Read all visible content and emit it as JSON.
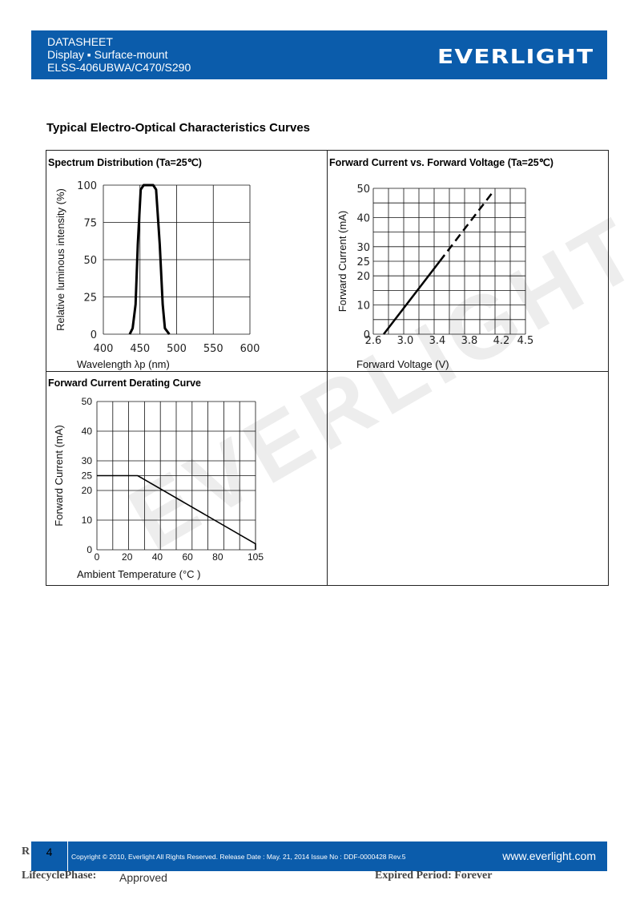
{
  "header": {
    "line1": "DATASHEET",
    "line2": "Display ▪ Surface-mount",
    "line3": "ELSS-406UBWA/C470/S290",
    "logo": "EVERLIGHT"
  },
  "section_title": "Typical Electro-Optical Characteristics Curves",
  "watermark": "EVERLIGHT",
  "chart_data": [
    {
      "type": "line",
      "title": "Spectrum Distribution (Ta=25℃)",
      "xlabel": "Wavelength λp (nm)",
      "ylabel": "Relative luminous intensity (%)",
      "xlim": [
        400,
        600
      ],
      "ylim": [
        0,
        100
      ],
      "xticks": [
        "400",
        "450",
        "500",
        "550",
        "600"
      ],
      "yticks": [
        "0",
        "25",
        "50",
        "75",
        "100"
      ],
      "grid": true,
      "series": [
        {
          "x": [
            436,
            440,
            444,
            447,
            451,
            455,
            462,
            468,
            472,
            477,
            481,
            484,
            490
          ],
          "y": [
            0,
            4,
            20,
            60,
            97,
            100,
            100,
            100,
            97,
            60,
            20,
            4,
            0
          ]
        }
      ]
    },
    {
      "type": "line",
      "title": "Forward Current vs. Forward Voltage (Ta=25℃)",
      "xlabel": "Forward Voltage (V)",
      "ylabel": "Forward Current (mA)",
      "xticks": [
        "2.6",
        "3.0",
        "3.4",
        "3.8",
        "4.2",
        "4.5"
      ],
      "xtick_values": [
        2.6,
        3.0,
        3.4,
        3.8,
        4.2,
        4.5
      ],
      "yticks": [
        "0",
        "10",
        "20",
        "25",
        "30",
        "40",
        "50"
      ],
      "ytick_values": [
        0,
        10,
        20,
        25,
        30,
        40,
        50
      ],
      "xlim": [
        2.6,
        4.5
      ],
      "ylim": [
        0,
        50
      ],
      "grid": true,
      "series": [
        {
          "style": "solid",
          "x": [
            2.73,
            3.43
          ],
          "y": [
            0,
            25
          ]
        },
        {
          "style": "dashed",
          "x": [
            3.43,
            4.1
          ],
          "y": [
            25,
            49
          ]
        }
      ]
    },
    {
      "type": "line",
      "title": "Forward Current Derating Curve",
      "xlabel": "Ambient Temperature (°C )",
      "ylabel": "Forward Current (mA)",
      "xticks": [
        "0",
        "20",
        "40",
        "60",
        "80",
        "105"
      ],
      "xtick_values": [
        0,
        20,
        40,
        60,
        80,
        105
      ],
      "yticks": [
        "0",
        "10",
        "20",
        "25",
        "30",
        "40",
        "50"
      ],
      "ytick_values": [
        0,
        10,
        20,
        25,
        30,
        40,
        50
      ],
      "xlim": [
        0,
        105
      ],
      "ylim": [
        0,
        50
      ],
      "grid": true,
      "series": [
        {
          "x": [
            0,
            27,
            105,
            105
          ],
          "y": [
            25,
            25,
            2,
            0
          ]
        }
      ]
    }
  ],
  "footer": {
    "page": "4",
    "copyright": "Copyright © 2010, Everlight All Rights Reserved. Release Date : May. 21, 2014 Issue No : DDF-0000428 Rev.5",
    "url": "www.everlight.com",
    "r_prefix": "R",
    "lifecycle_label": "LifecyclePhase:",
    "lifecycle_value": "Approved",
    "expired": "Expired Period: Forever"
  }
}
